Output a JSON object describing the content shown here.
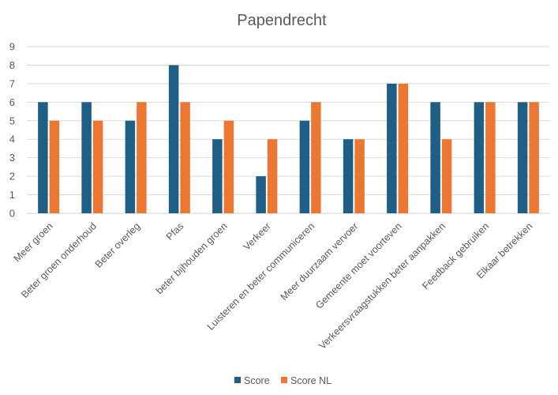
{
  "chart_data": {
    "type": "bar",
    "title": "Papendrecht",
    "categories": [
      "Meer groen",
      "Beter groen onderhoud",
      "Beter overleg",
      "Pfas",
      "beter bijhouden groen",
      "Verkeer",
      "Luisteren en beter communiceren",
      "Meer duurzaam vervoer",
      "Gemeente moet voorteven",
      "Verkeersvraagstukken beter aanpakken",
      "Feedback gebruiken",
      "Elkaar betrekken"
    ],
    "series": [
      {
        "name": "Score",
        "color": "#1f5f86",
        "values": [
          6,
          6,
          5,
          8,
          4,
          2,
          5,
          4,
          7,
          6,
          6,
          6
        ]
      },
      {
        "name": "Score NL",
        "color": "#ec7733",
        "values": [
          5,
          5,
          6,
          6,
          5,
          4,
          6,
          4,
          7,
          4,
          6,
          6
        ]
      }
    ],
    "yticks": [
      "0",
      "1",
      "2",
      "3",
      "4",
      "5",
      "6",
      "7",
      "8",
      "9"
    ],
    "ylim": [
      0,
      9
    ],
    "grid": true,
    "legend_position": "bottom"
  }
}
